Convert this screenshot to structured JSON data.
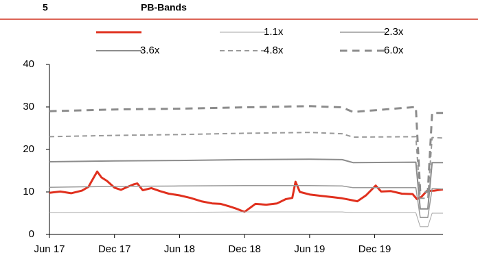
{
  "chart_data": {
    "type": "line",
    "label": "5",
    "title": "PB-Bands",
    "xlim": [
      0,
      36.3
    ],
    "ylim": [
      0,
      40
    ],
    "yticks": [
      0,
      10,
      20,
      30,
      40
    ],
    "xticks": [
      {
        "value": 0,
        "label": "Jun 17"
      },
      {
        "value": 6,
        "label": "Dec 17"
      },
      {
        "value": 12,
        "label": "Jun 18"
      },
      {
        "value": 18,
        "label": "Dec 18"
      },
      {
        "value": 24,
        "label": "Jun 19"
      },
      {
        "value": 30,
        "label": "Dec 19"
      }
    ],
    "series": [
      {
        "color": "#e0301e",
        "width": 3,
        "dash": false,
        "x": [
          0,
          1,
          2,
          3,
          3.6,
          4,
          4.4,
          4.8,
          5.3,
          6,
          6.6,
          7.2,
          7.8,
          8.1,
          8.6,
          9.4,
          10.2,
          11,
          12,
          13,
          14,
          15,
          15.8,
          16.6,
          17.2,
          18,
          19,
          20,
          21,
          21.8,
          22.4,
          22.7,
          23.1,
          24,
          25,
          26,
          27,
          28.4,
          29.2,
          30.1,
          30.6,
          31.5,
          32.5,
          33.5,
          33.9,
          34.3,
          34.8,
          35.5,
          36.3
        ],
        "values": [
          9.8,
          10.1,
          9.7,
          10.3,
          11.2,
          13,
          14.8,
          13.4,
          12.6,
          11,
          10.5,
          11.2,
          11.8,
          12,
          10.4,
          10.9,
          10.2,
          9.6,
          9.2,
          8.6,
          7.8,
          7.3,
          7.2,
          6.6,
          6.1,
          5.3,
          7.2,
          7,
          7.3,
          8.3,
          8.6,
          12.4,
          10,
          9.4,
          9.1,
          8.8,
          8.5,
          7.8,
          9.2,
          11.5,
          10.1,
          10.2,
          9.6,
          9.5,
          8.3,
          8.8,
          10.2,
          10.3,
          10.6
        ]
      },
      {
        "name": "1.1x",
        "color": "#a6a6a6",
        "width": 1,
        "dash": false,
        "x": [
          0,
          6,
          12,
          18,
          24,
          27,
          28,
          33.8,
          34.2,
          34.9,
          35.3,
          36.3
        ],
        "values": [
          5.1,
          5.2,
          5.2,
          5.3,
          5.3,
          5.3,
          5.1,
          5.1,
          1.8,
          1.8,
          5,
          5
        ]
      },
      {
        "name": "2.3x",
        "color": "#999999",
        "width": 1.5,
        "dash": false,
        "x": [
          0,
          6,
          12,
          18,
          24,
          27,
          28,
          33.8,
          34.2,
          34.9,
          35.3,
          36.3
        ],
        "values": [
          11.1,
          11.3,
          11.4,
          11.5,
          11.5,
          11.4,
          11,
          11,
          4,
          4,
          10.8,
          10.7
        ]
      },
      {
        "name": "3.6x",
        "color": "#8c8c8c",
        "width": 2,
        "dash": false,
        "x": [
          0,
          6,
          12,
          18,
          24,
          27,
          28,
          33.8,
          34.2,
          34.9,
          35.3,
          36.3
        ],
        "values": [
          17.1,
          17.3,
          17.4,
          17.6,
          17.7,
          17.6,
          16.9,
          17,
          6,
          6,
          16.9,
          16.9
        ]
      },
      {
        "name": "4.8x",
        "color": "#999999",
        "width": 2,
        "dash": true,
        "x": [
          0,
          6,
          12,
          18,
          24,
          27,
          28,
          33.8,
          34.2,
          34.9,
          35.3,
          36.3
        ],
        "values": [
          23,
          23.3,
          23.5,
          23.8,
          24,
          23.7,
          22.9,
          23,
          8.5,
          8.5,
          22.8,
          22.7
        ]
      },
      {
        "name": "6.0x",
        "color": "#8c8c8c",
        "width": 3,
        "dash": true,
        "x": [
          0,
          6,
          12,
          18,
          24,
          27,
          28,
          33.8,
          34.2,
          34.9,
          35.3,
          36.3
        ],
        "values": [
          29,
          29.4,
          29.6,
          29.9,
          30.2,
          29.9,
          28.8,
          30,
          10,
          10,
          28.6,
          28.6
        ]
      }
    ]
  }
}
